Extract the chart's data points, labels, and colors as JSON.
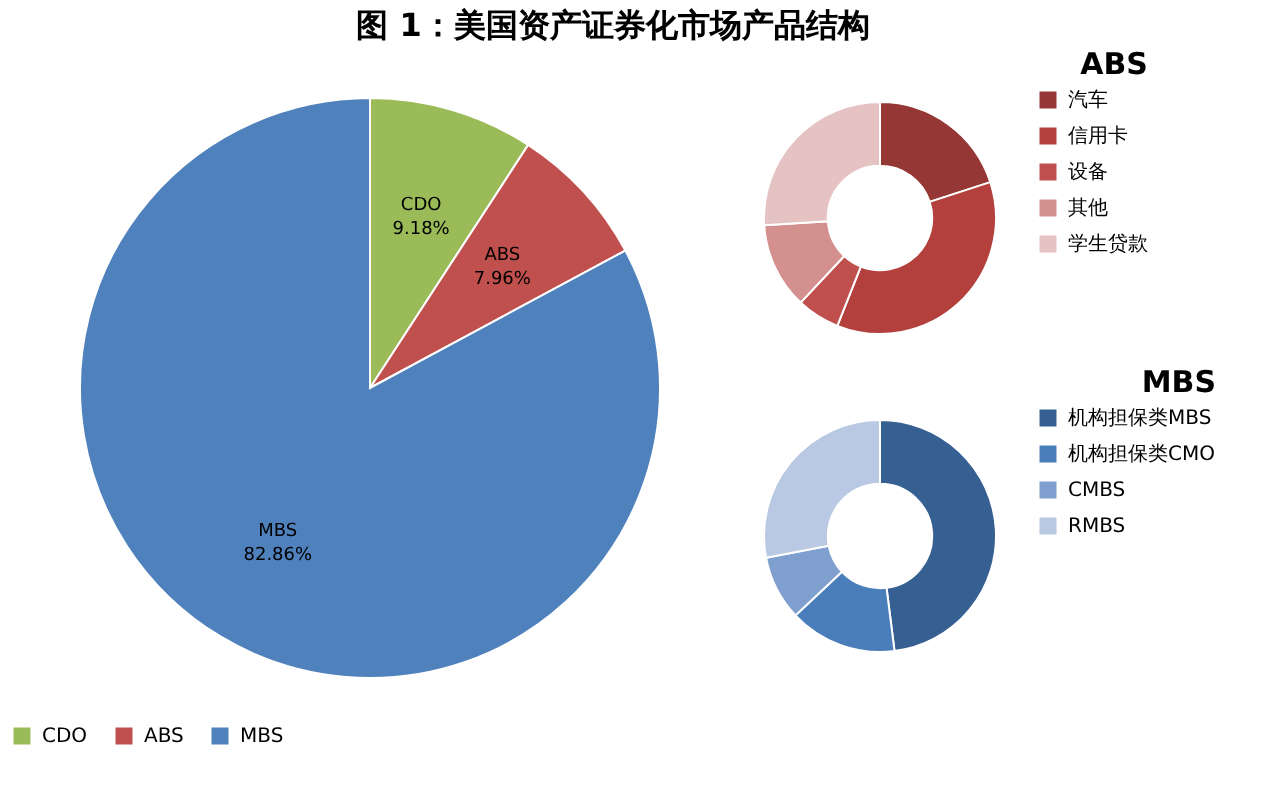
{
  "chart_data": [
    {
      "type": "pie",
      "title": "图 1：美国资产证券化市场产品结构",
      "categories": [
        "CDO",
        "ABS",
        "MBS"
      ],
      "values": [
        9.18,
        7.96,
        82.86
      ],
      "colors": [
        "#9bbb59",
        "#c0504d",
        "#4f81bd"
      ],
      "value_labels": [
        "9.18%",
        "7.96%",
        "82.86%"
      ],
      "legend": "bottom"
    },
    {
      "type": "donut",
      "title": "ABS",
      "categories": [
        "汽车",
        "信用卡",
        "设备",
        "其他",
        "学生贷款"
      ],
      "values": [
        20,
        36,
        6,
        12,
        26
      ],
      "colors": [
        "#953735",
        "#b3403d",
        "#c0504d",
        "#d4908f",
        "#e6c3c3"
      ],
      "legend": "right"
    },
    {
      "type": "donut",
      "title": "MBS",
      "categories": [
        "机构担保类MBS",
        "机构担保类CMO",
        "CMBS",
        "RMBS"
      ],
      "values": [
        48,
        15,
        9,
        28
      ],
      "colors": [
        "#376092",
        "#4a7ebb",
        "#7f9fcf",
        "#b9c9e3"
      ],
      "legend": "right"
    }
  ]
}
